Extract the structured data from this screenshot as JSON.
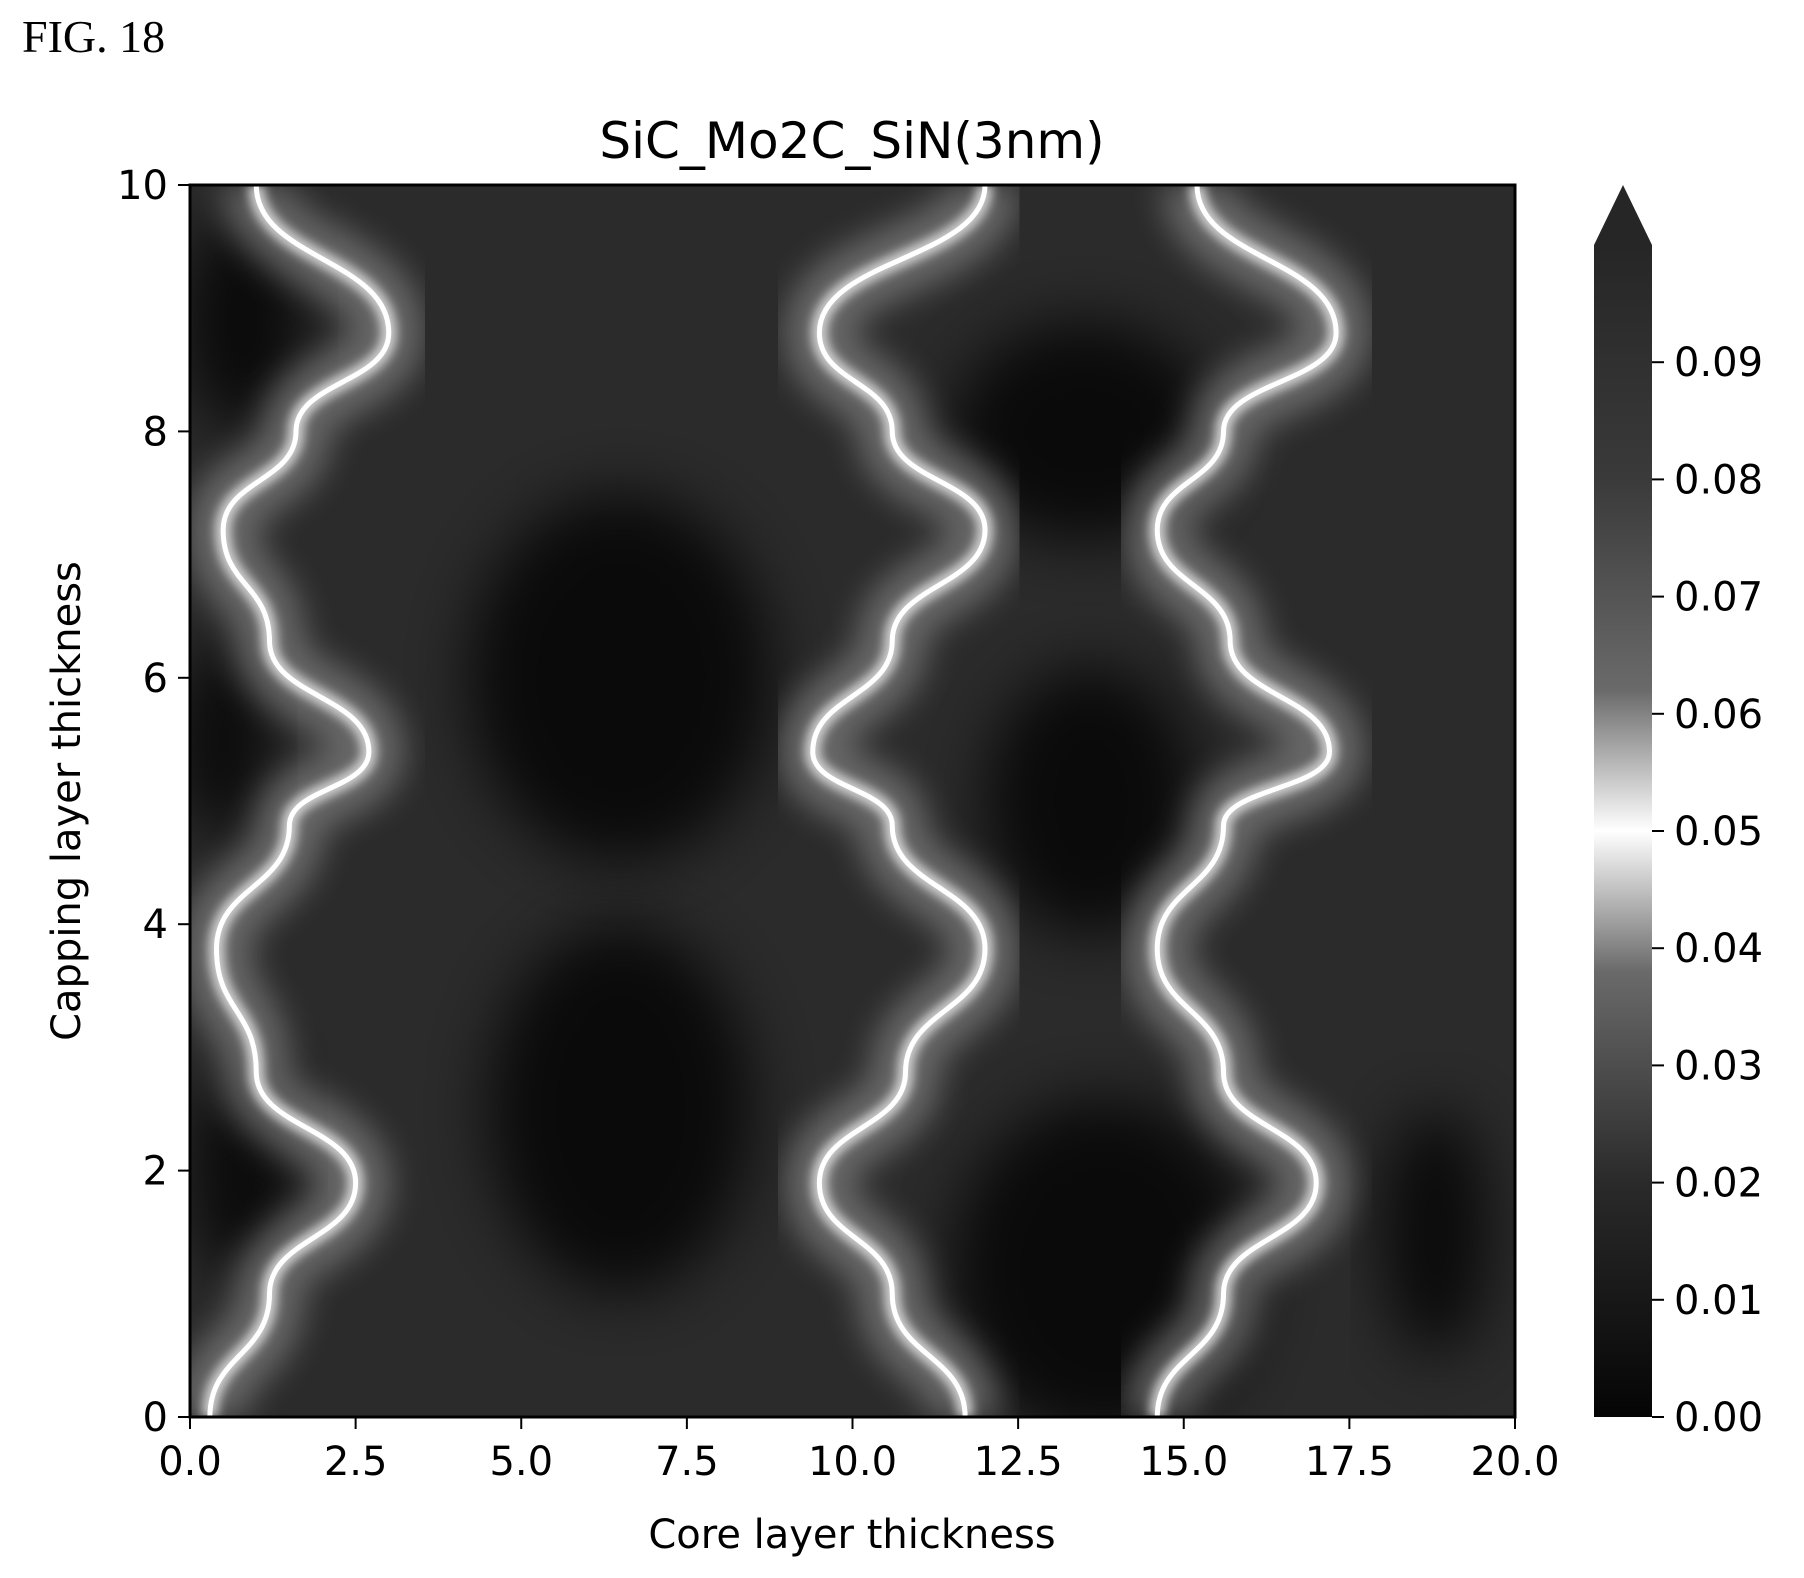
{
  "figure_label": "FIG. 18",
  "chart_data": {
    "type": "heatmap",
    "title": "SiC_Mo2C_SiN(3nm)",
    "xlabel": "Core layer thickness",
    "ylabel": "Capping layer thickness",
    "xlim": [
      0,
      20
    ],
    "ylim": [
      0,
      10
    ],
    "x_ticks": [
      "0.0",
      "2.5",
      "5.0",
      "7.5",
      "10.0",
      "12.5",
      "15.0",
      "17.5",
      "20.0"
    ],
    "y_ticks": [
      "0",
      "2",
      "4",
      "6",
      "8",
      "10"
    ],
    "colorbar": {
      "range": [
        0,
        0.1
      ],
      "extend": "max",
      "ticks": [
        "0.00",
        "0.01",
        "0.02",
        "0.03",
        "0.04",
        "0.05",
        "0.06",
        "0.07",
        "0.08",
        "0.09"
      ]
    },
    "contour_peaks": {
      "description_level": 0.05,
      "curves": [
        {
          "x": [
            0.3,
            1.2,
            2.5,
            1.0,
            0.4,
            1.5,
            2.7,
            1.2,
            0.5,
            1.6,
            3.0,
            1.2
          ]
        },
        {
          "y": [
            0.0,
            1.0,
            1.9,
            2.8,
            3.8,
            4.8,
            5.4,
            6.3,
            7.2,
            8.0,
            8.8,
            10.0
          ]
        }
      ]
    },
    "colormap": [
      "#000000",
      "#555555",
      "#ffffff",
      "#555555",
      "#000000"
    ]
  }
}
